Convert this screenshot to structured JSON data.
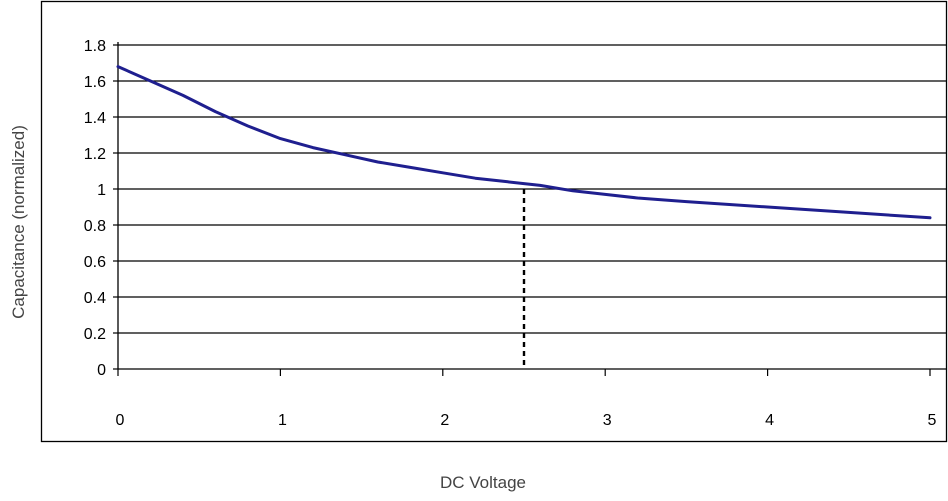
{
  "chart_data": {
    "type": "line",
    "xlabel": "DC Voltage",
    "ylabel": "Capacitance (normalized)",
    "xlim": [
      0,
      5
    ],
    "ylim": [
      0,
      1.8
    ],
    "x_ticks": [
      "0",
      "1",
      "2",
      "3",
      "4",
      "5"
    ],
    "y_ticks": [
      "0",
      "0.2",
      "0.4",
      "0.6",
      "0.8",
      "1",
      "1.2",
      "1.4",
      "1.6",
      "1.8"
    ],
    "grid": "horizontal",
    "series": [
      {
        "x": [
          0,
          0.2,
          0.4,
          0.6,
          0.8,
          1.0,
          1.2,
          1.4,
          1.6,
          1.8,
          2.0,
          2.2,
          2.4,
          2.5,
          2.6,
          2.8,
          3.0,
          3.2,
          3.5,
          4.0,
          4.5,
          5.0
        ],
        "y": [
          1.68,
          1.6,
          1.52,
          1.43,
          1.35,
          1.28,
          1.23,
          1.19,
          1.15,
          1.12,
          1.09,
          1.06,
          1.04,
          1.03,
          1.02,
          0.99,
          0.97,
          0.95,
          0.93,
          0.9,
          0.87,
          0.84
        ],
        "color": "#1f1f8f"
      }
    ],
    "marker_line": {
      "x": 2.5,
      "y": 1.0,
      "style": "dashed"
    }
  }
}
